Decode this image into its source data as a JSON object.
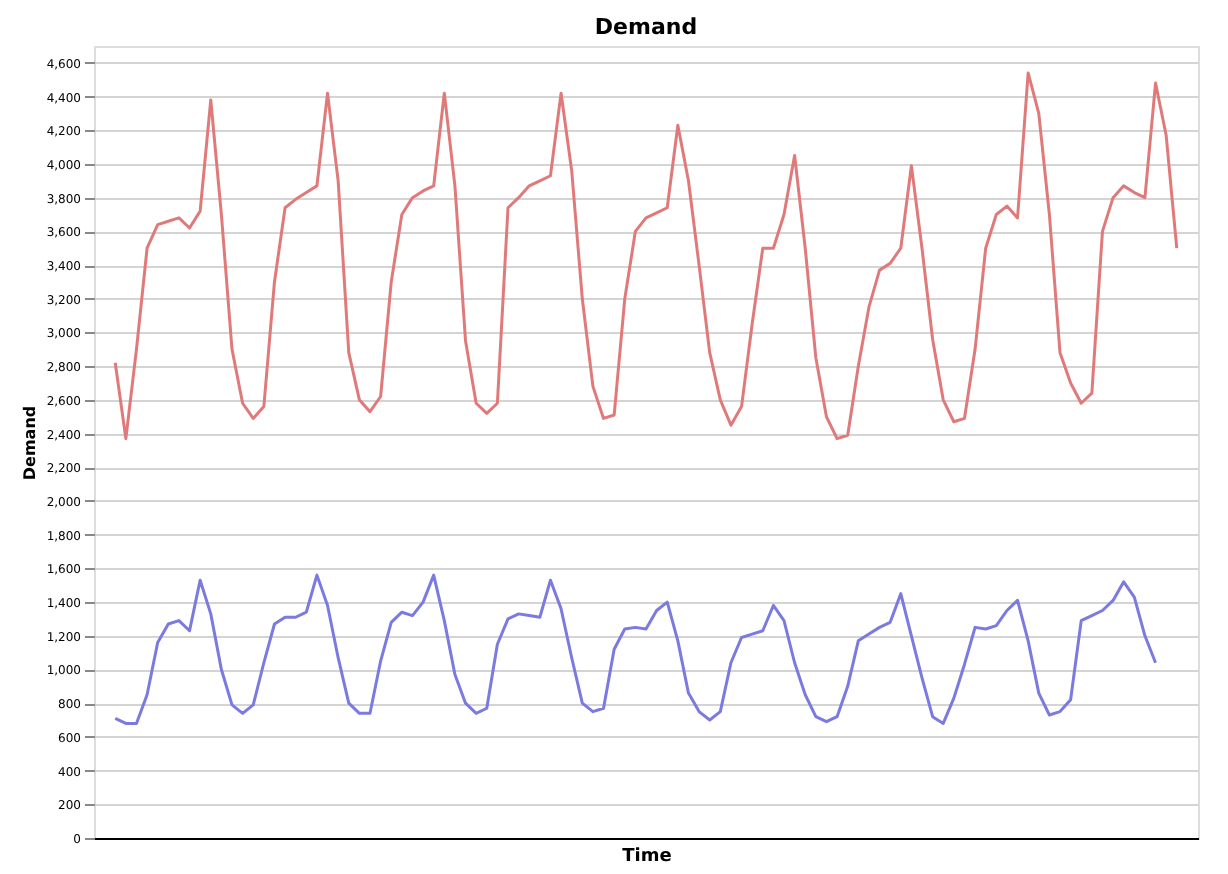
{
  "chart_data": {
    "type": "line",
    "title": "Demand",
    "xlabel": "Time",
    "ylabel": "Demand",
    "ylim": [
      0,
      4700
    ],
    "yticks": [
      0,
      200,
      400,
      600,
      800,
      {
        "value": 1000,
        "label": "1,000"
      },
      {
        "value": 1200,
        "label": "1,200"
      },
      {
        "value": 1400,
        "label": "1,400"
      },
      {
        "value": 1600,
        "label": "1,600"
      },
      {
        "value": 1800,
        "label": "1,800"
      },
      {
        "value": 2000,
        "label": "2,000"
      },
      {
        "value": 2200,
        "label": "2,200"
      },
      {
        "value": 2400,
        "label": "2,400"
      },
      {
        "value": 2600,
        "label": "2,600"
      },
      {
        "value": 2800,
        "label": "2,800"
      },
      {
        "value": 3000,
        "label": "3,000"
      },
      {
        "value": 3200,
        "label": "3,200"
      },
      {
        "value": 3400,
        "label": "3,400"
      },
      {
        "value": 3600,
        "label": "3,600"
      },
      {
        "value": 3800,
        "label": "3,800"
      },
      {
        "value": 4000,
        "label": "4,000"
      },
      {
        "value": 4200,
        "label": "4,200"
      },
      {
        "value": 4400,
        "label": "4,400"
      },
      {
        "value": 4600,
        "label": "4,600"
      }
    ],
    "tick_labels": "y",
    "grid": "y",
    "categories": [
      null,
      null,
      null,
      null,
      null,
      null,
      null,
      null,
      null,
      null,
      null,
      null,
      null,
      null,
      null,
      null,
      null,
      null,
      null,
      null,
      null,
      null,
      null,
      null,
      null,
      null,
      null,
      null,
      null,
      null,
      null,
      null,
      null,
      null,
      null,
      null,
      null,
      null,
      null,
      null,
      null,
      null,
      null,
      null,
      null,
      null,
      null,
      null,
      null,
      null,
      null,
      null,
      null,
      null,
      null,
      null,
      null,
      null,
      null,
      null,
      null,
      null,
      null,
      null,
      null,
      null,
      null,
      null,
      null,
      null,
      null,
      null,
      null,
      null,
      null,
      null,
      null,
      null,
      null,
      null,
      null,
      null,
      null,
      null,
      null,
      null,
      null,
      null,
      null,
      null,
      null,
      null,
      null,
      null,
      null,
      null,
      null,
      null,
      null,
      null,
      null
    ],
    "series": [
      {
        "color": "#e07a7a",
        "values": [
          2820,
          2370,
          2900,
          3500,
          3640,
          3660,
          3680,
          3620,
          3720,
          4380,
          3700,
          2900,
          2580,
          2490,
          2560,
          3300,
          3740,
          3790,
          3830,
          3870,
          4420,
          3900,
          2880,
          2600,
          2530,
          2620,
          3300,
          3700,
          3800,
          3840,
          3870,
          4420,
          3870,
          2950,
          2580,
          2520,
          2580,
          3740,
          3800,
          3870,
          3900,
          3930,
          4420,
          3960,
          3200,
          2680,
          2490,
          2510,
          3200,
          3600,
          3680,
          3710,
          3740,
          4230,
          3900,
          3400,
          2880,
          2600,
          2450,
          2560,
          3050,
          3500,
          3500,
          3700,
          4050,
          3500,
          2850,
          2500,
          2370,
          2390,
          2800,
          3150,
          3370,
          3410,
          3500,
          3990,
          3500,
          2960,
          2600,
          2470,
          2490,
          2900,
          3500,
          3700,
          3750,
          3680,
          4540,
          4300,
          3700,
          2880,
          2700,
          2580,
          2640,
          3600,
          3800,
          3870,
          3830,
          3800,
          4480,
          4170,
          3500
        ]
      },
      {
        "color": "#7a7ae0",
        "values": [
          710,
          680,
          680,
          850,
          1160,
          1270,
          1290,
          1230,
          1530,
          1330,
          1000,
          790,
          740,
          790,
          1040,
          1270,
          1310,
          1310,
          1340,
          1560,
          1380,
          1070,
          800,
          740,
          740,
          1050,
          1280,
          1340,
          1320,
          1400,
          1560,
          1290,
          970,
          800,
          740,
          770,
          1150,
          1300,
          1330,
          1320,
          1310,
          1530,
          1360,
          1070,
          800,
          750,
          770,
          1120,
          1240,
          1250,
          1240,
          1350,
          1400,
          1170,
          860,
          750,
          700,
          750,
          1040,
          1190,
          1210,
          1230,
          1380,
          1290,
          1040,
          850,
          720,
          690,
          720,
          900,
          1170,
          1210,
          1250,
          1280,
          1450,
          1200,
          950,
          720,
          680,
          830,
          1030,
          1250,
          1240,
          1260,
          1350,
          1410,
          1170,
          860,
          730,
          750,
          820,
          1290,
          1320,
          1350,
          1410,
          1520,
          1430,
          1200,
          1040,
          null,
          null
        ]
      }
    ]
  }
}
